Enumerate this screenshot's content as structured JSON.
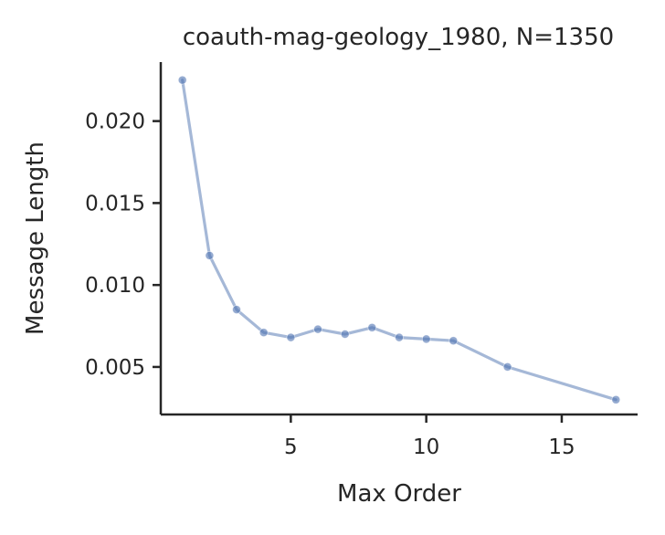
{
  "chart_data": {
    "type": "line",
    "title": "coauth-mag-geology_1980, N=1350",
    "xlabel": "Max Order",
    "ylabel": "Message Length",
    "xlim": [
      0.2,
      17.8
    ],
    "ylim": [
      0.0021,
      0.0236
    ],
    "xticks": [
      5,
      10,
      15
    ],
    "xtick_labels": [
      "5",
      "10",
      "15"
    ],
    "yticks": [
      0.005,
      0.01,
      0.015,
      0.02
    ],
    "ytick_labels": [
      "0.005",
      "0.010",
      "0.015",
      "0.020"
    ],
    "grid": false,
    "series": [
      {
        "color": "#4c72b0",
        "x": [
          1,
          2,
          3,
          4,
          5,
          6,
          7,
          8,
          9,
          10,
          11,
          13,
          17
        ],
        "y": [
          0.0225,
          0.0118,
          0.0085,
          0.0071,
          0.0068,
          0.0073,
          0.007,
          0.0074,
          0.0068,
          0.0067,
          0.0066,
          0.005,
          0.003
        ]
      }
    ]
  }
}
